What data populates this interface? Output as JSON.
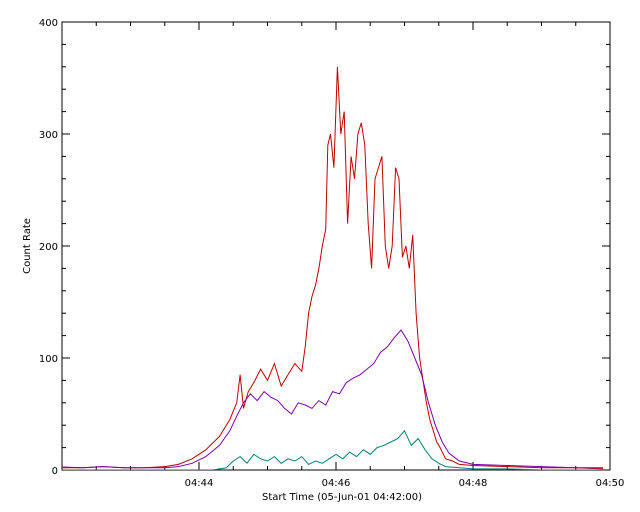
{
  "chart_data": {
    "type": "line",
    "title": "",
    "xlabel": "Start Time (05-Jun-01 04:42:00)",
    "ylabel": "Count Rate",
    "xlim": [
      0,
      8
    ],
    "ylim": [
      0,
      400
    ],
    "x_unit": "minutes",
    "x_ticks": [
      {
        "value": 2,
        "label": "04:44"
      },
      {
        "value": 4,
        "label": "04:46"
      },
      {
        "value": 6,
        "label": "04:48"
      },
      {
        "value": 8,
        "label": "04:50"
      }
    ],
    "y_ticks": [
      {
        "value": 0,
        "label": "0"
      },
      {
        "value": 100,
        "label": "100"
      },
      {
        "value": 200,
        "label": "200"
      },
      {
        "value": 300,
        "label": "300"
      },
      {
        "value": 400,
        "label": "400"
      }
    ],
    "grid": false,
    "series": [
      {
        "color": "#c00000",
        "x": [
          -0.15,
          0.3,
          0.6,
          0.9,
          1.2,
          1.5,
          1.7,
          1.9,
          2.1,
          2.3,
          2.45,
          2.55,
          2.6,
          2.65,
          2.72,
          2.8,
          2.9,
          3.0,
          3.1,
          3.2,
          3.3,
          3.4,
          3.5,
          3.55,
          3.6,
          3.65,
          3.7,
          3.75,
          3.8,
          3.85,
          3.88,
          3.92,
          3.97,
          4.02,
          4.07,
          4.12,
          4.17,
          4.22,
          4.27,
          4.32,
          4.37,
          4.42,
          4.47,
          4.52,
          4.57,
          4.62,
          4.67,
          4.72,
          4.77,
          4.82,
          4.87,
          4.92,
          4.97,
          5.02,
          5.07,
          5.12,
          5.17,
          5.22,
          5.27,
          5.32,
          5.37,
          5.42,
          5.47,
          5.52,
          5.6,
          5.7,
          5.8,
          6.0,
          6.5,
          7.0,
          7.5,
          7.9
        ],
        "y": [
          2,
          2,
          3,
          2,
          2,
          3,
          5,
          10,
          18,
          30,
          45,
          60,
          85,
          55,
          70,
          78,
          90,
          80,
          95,
          75,
          85,
          95,
          88,
          110,
          140,
          155,
          165,
          180,
          200,
          215,
          290,
          300,
          270,
          360,
          300,
          320,
          220,
          280,
          260,
          300,
          310,
          290,
          220,
          180,
          260,
          270,
          280,
          200,
          180,
          200,
          270,
          260,
          190,
          200,
          180,
          210,
          140,
          100,
          80,
          60,
          45,
          35,
          25,
          20,
          10,
          8,
          5,
          4,
          3,
          2,
          2,
          1
        ],
        "name": ""
      },
      {
        "color": "#7a00b0",
        "x": [
          -0.15,
          0.3,
          0.6,
          0.9,
          1.2,
          1.5,
          1.7,
          1.9,
          2.1,
          2.3,
          2.45,
          2.55,
          2.65,
          2.75,
          2.85,
          2.95,
          3.05,
          3.15,
          3.25,
          3.35,
          3.45,
          3.55,
          3.65,
          3.75,
          3.85,
          3.95,
          4.05,
          4.15,
          4.25,
          4.35,
          4.45,
          4.55,
          4.65,
          4.75,
          4.85,
          4.95,
          5.05,
          5.15,
          5.25,
          5.35,
          5.45,
          5.55,
          5.65,
          5.8,
          6.0,
          6.5,
          7.0,
          7.5,
          7.9
        ],
        "y": [
          3,
          2,
          3,
          2,
          2,
          2,
          3,
          6,
          12,
          22,
          35,
          48,
          60,
          68,
          62,
          70,
          65,
          62,
          55,
          50,
          60,
          58,
          55,
          62,
          58,
          70,
          68,
          78,
          82,
          85,
          90,
          95,
          105,
          110,
          118,
          125,
          115,
          100,
          85,
          60,
          40,
          25,
          15,
          8,
          5,
          4,
          3,
          2,
          2
        ],
        "name": ""
      },
      {
        "color": "#008080",
        "x": [
          -0.15,
          0.5,
          1.0,
          1.5,
          2.0,
          2.2,
          2.4,
          2.5,
          2.6,
          2.7,
          2.8,
          2.9,
          3.0,
          3.1,
          3.2,
          3.3,
          3.4,
          3.5,
          3.6,
          3.7,
          3.8,
          3.9,
          4.0,
          4.1,
          4.2,
          4.3,
          4.4,
          4.5,
          4.6,
          4.7,
          4.8,
          4.9,
          5.0,
          5.1,
          5.2,
          5.3,
          5.4,
          5.5,
          5.6,
          5.8,
          6.0,
          6.5,
          7.0,
          7.5,
          7.9
        ],
        "y": [
          0,
          0,
          0,
          0,
          0,
          0,
          2,
          8,
          12,
          6,
          14,
          10,
          8,
          12,
          6,
          10,
          8,
          12,
          5,
          8,
          6,
          10,
          14,
          10,
          16,
          12,
          18,
          14,
          20,
          22,
          25,
          28,
          35,
          22,
          28,
          18,
          10,
          6,
          3,
          2,
          1,
          1,
          0,
          0,
          0
        ],
        "name": ""
      }
    ]
  }
}
